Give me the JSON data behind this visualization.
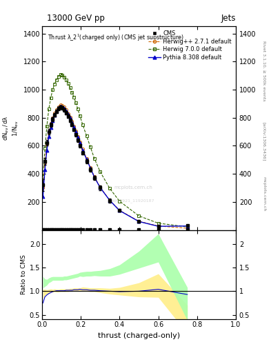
{
  "title_top": "13000 GeV pp",
  "title_right": "Jets",
  "plot_title": "Thrust $\\lambda\\_2^1$(charged only) (CMS jet substructure)",
  "xlabel": "thrust (charged-only)",
  "ylabel_ratio": "Ratio to CMS",
  "ylim_main": [
    0,
    1450
  ],
  "ylim_ratio": [
    0.4,
    2.3
  ],
  "yticks_main": [
    0,
    200,
    400,
    600,
    800,
    1000,
    1200,
    1400
  ],
  "yticks_ratio": [
    0.5,
    1.0,
    1.5,
    2.0
  ],
  "cms_color": "#000000",
  "herwig271_color": "#cc6600",
  "herwig700_color": "#336600",
  "pythia_color": "#0000cc",
  "watermark": "mcplots.cern.ch",
  "arxiv": "[arXiv:1306.3436]",
  "rivet": "Rivet 3.1.10, ≥ 500k events",
  "cms_x": [
    0.005,
    0.015,
    0.025,
    0.035,
    0.045,
    0.055,
    0.065,
    0.075,
    0.085,
    0.095,
    0.105,
    0.115,
    0.125,
    0.135,
    0.145,
    0.155,
    0.165,
    0.175,
    0.185,
    0.195,
    0.21,
    0.23,
    0.25,
    0.27,
    0.3,
    0.35,
    0.4,
    0.5,
    0.6,
    0.75
  ],
  "cms_y": [
    320,
    490,
    620,
    700,
    750,
    790,
    820,
    845,
    865,
    875,
    870,
    855,
    835,
    810,
    780,
    750,
    715,
    680,
    640,
    600,
    550,
    490,
    430,
    370,
    300,
    210,
    140,
    60,
    25,
    30
  ],
  "cms_err": [
    40,
    25,
    20,
    18,
    16,
    15,
    14,
    13,
    13,
    12,
    12,
    12,
    12,
    12,
    12,
    12,
    12,
    12,
    12,
    12,
    14,
    14,
    15,
    15,
    16,
    15,
    12,
    8,
    5,
    6
  ],
  "hw271_x": [
    0.005,
    0.015,
    0.025,
    0.035,
    0.045,
    0.055,
    0.065,
    0.075,
    0.085,
    0.095,
    0.105,
    0.115,
    0.125,
    0.135,
    0.145,
    0.155,
    0.165,
    0.175,
    0.185,
    0.195,
    0.21,
    0.23,
    0.25,
    0.27,
    0.3,
    0.35,
    0.4,
    0.5,
    0.6,
    0.75
  ],
  "hw271_y": [
    300,
    480,
    610,
    700,
    760,
    800,
    835,
    855,
    875,
    890,
    885,
    875,
    855,
    830,
    805,
    775,
    740,
    705,
    665,
    625,
    575,
    510,
    445,
    380,
    305,
    210,
    140,
    62,
    28,
    12
  ],
  "hw700_x": [
    0.005,
    0.015,
    0.025,
    0.035,
    0.045,
    0.055,
    0.065,
    0.075,
    0.085,
    0.095,
    0.105,
    0.115,
    0.125,
    0.135,
    0.145,
    0.155,
    0.165,
    0.175,
    0.185,
    0.195,
    0.21,
    0.23,
    0.25,
    0.27,
    0.3,
    0.35,
    0.4,
    0.5,
    0.6,
    0.75
  ],
  "hw700_y": [
    380,
    580,
    740,
    860,
    940,
    1000,
    1040,
    1070,
    1095,
    1110,
    1105,
    1090,
    1070,
    1045,
    1015,
    980,
    945,
    905,
    860,
    815,
    750,
    670,
    590,
    510,
    415,
    295,
    205,
    100,
    48,
    22
  ],
  "py_x": [
    0.005,
    0.015,
    0.025,
    0.035,
    0.045,
    0.055,
    0.065,
    0.075,
    0.085,
    0.095,
    0.105,
    0.115,
    0.125,
    0.135,
    0.145,
    0.155,
    0.165,
    0.175,
    0.185,
    0.195,
    0.21,
    0.23,
    0.25,
    0.27,
    0.3,
    0.35,
    0.4,
    0.5,
    0.6,
    0.75
  ],
  "py_y": [
    240,
    430,
    570,
    665,
    730,
    780,
    820,
    850,
    870,
    882,
    878,
    866,
    848,
    825,
    798,
    768,
    735,
    700,
    662,
    622,
    568,
    504,
    440,
    377,
    302,
    210,
    138,
    60,
    26,
    28
  ],
  "hw271_ratio": [
    0.94,
    0.98,
    0.98,
    1.0,
    1.01,
    1.01,
    1.02,
    1.01,
    1.01,
    1.02,
    1.02,
    1.02,
    1.02,
    1.02,
    1.03,
    1.03,
    1.04,
    1.04,
    1.04,
    1.04,
    1.05,
    1.04,
    1.03,
    1.03,
    1.02,
    1.0,
    1.0,
    1.03,
    1.12,
    0.4
  ],
  "hw700_ratio": [
    1.19,
    1.18,
    1.19,
    1.23,
    1.25,
    1.27,
    1.27,
    1.27,
    1.27,
    1.27,
    1.27,
    1.28,
    1.28,
    1.29,
    1.3,
    1.31,
    1.32,
    1.33,
    1.34,
    1.36,
    1.36,
    1.37,
    1.37,
    1.38,
    1.38,
    1.4,
    1.46,
    1.67,
    1.92,
    0.73
  ],
  "py_ratio": [
    0.75,
    0.88,
    0.92,
    0.95,
    0.97,
    0.99,
    1.0,
    1.01,
    1.01,
    1.01,
    1.01,
    1.01,
    1.02,
    1.02,
    1.02,
    1.02,
    1.03,
    1.03,
    1.03,
    1.04,
    1.03,
    1.03,
    1.02,
    1.02,
    1.01,
    1.0,
    0.99,
    1.0,
    1.04,
    0.93
  ],
  "hw271_ratio_err": [
    0.1,
    0.06,
    0.05,
    0.04,
    0.04,
    0.03,
    0.03,
    0.03,
    0.03,
    0.03,
    0.03,
    0.03,
    0.03,
    0.03,
    0.03,
    0.03,
    0.03,
    0.03,
    0.03,
    0.03,
    0.04,
    0.04,
    0.04,
    0.04,
    0.05,
    0.06,
    0.08,
    0.15,
    0.25,
    0.3
  ],
  "hw700_ratio_err": [
    0.12,
    0.08,
    0.06,
    0.05,
    0.05,
    0.04,
    0.04,
    0.04,
    0.04,
    0.04,
    0.04,
    0.04,
    0.04,
    0.04,
    0.04,
    0.04,
    0.04,
    0.04,
    0.04,
    0.04,
    0.05,
    0.05,
    0.05,
    0.05,
    0.06,
    0.08,
    0.1,
    0.18,
    0.3,
    0.35
  ],
  "py_ratio_err": [
    0.08,
    0.05,
    0.04,
    0.03,
    0.03,
    0.03,
    0.03,
    0.02,
    0.02,
    0.02,
    0.02,
    0.02,
    0.02,
    0.02,
    0.02,
    0.02,
    0.02,
    0.02,
    0.02,
    0.02,
    0.03,
    0.03,
    0.03,
    0.03,
    0.04,
    0.05,
    0.07,
    0.13,
    0.22,
    0.28
  ]
}
